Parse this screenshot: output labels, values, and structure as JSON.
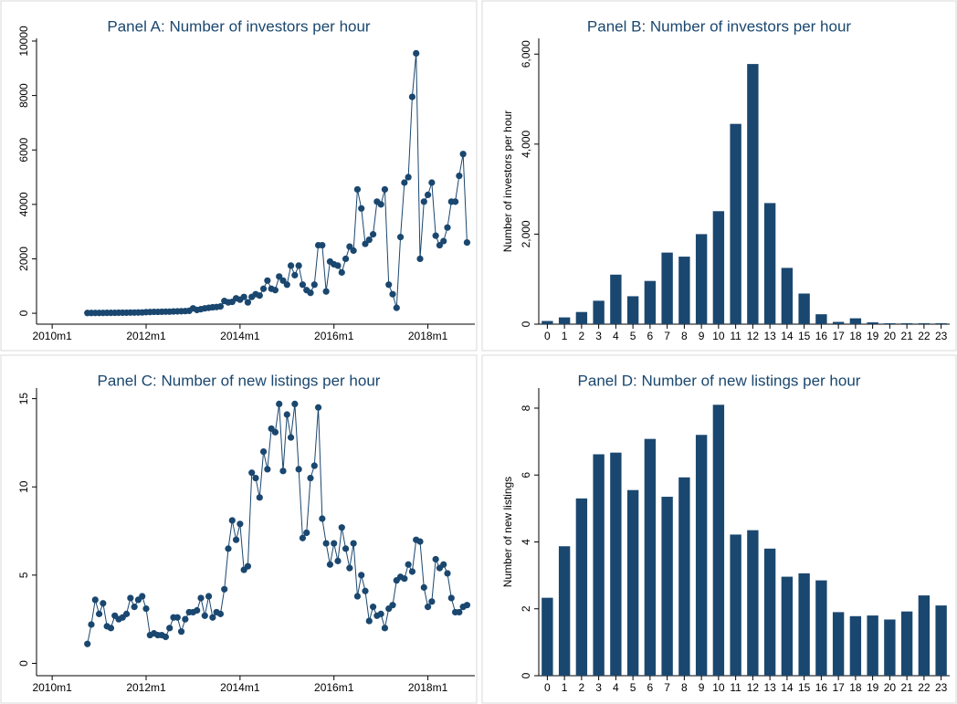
{
  "chart_data": [
    {
      "type": "line",
      "title": "Panel A: Number of investors per hour",
      "color": "#1a476f",
      "x": [
        "2010m10",
        "2010m11",
        "2010m12",
        "2011m1",
        "2011m2",
        "2011m3",
        "2011m4",
        "2011m5",
        "2011m6",
        "2011m7",
        "2011m8",
        "2011m9",
        "2011m10",
        "2011m11",
        "2011m12",
        "2012m1",
        "2012m2",
        "2012m3",
        "2012m4",
        "2012m5",
        "2012m6",
        "2012m7",
        "2012m8",
        "2012m9",
        "2012m10",
        "2012m11",
        "2012m12",
        "2013m1",
        "2013m2",
        "2013m3",
        "2013m4",
        "2013m5",
        "2013m6",
        "2013m7",
        "2013m8",
        "2013m9",
        "2013m10",
        "2013m11",
        "2013m12",
        "2014m1",
        "2014m2",
        "2014m3",
        "2014m4",
        "2014m5",
        "2014m6",
        "2014m7",
        "2014m8",
        "2014m9",
        "2014m10",
        "2014m11",
        "2014m12",
        "2015m1",
        "2015m2",
        "2015m3",
        "2015m4",
        "2015m5",
        "2015m6",
        "2015m7",
        "2015m8",
        "2015m9",
        "2015m10",
        "2015m11",
        "2015m12",
        "2016m1",
        "2016m2",
        "2016m3",
        "2016m4",
        "2016m5",
        "2016m6",
        "2016m7",
        "2016m8",
        "2016m9",
        "2016m10",
        "2016m11",
        "2016m12",
        "2017m1",
        "2017m2",
        "2017m3",
        "2017m4",
        "2017m5",
        "2017m6",
        "2017m7",
        "2017m8",
        "2017m9",
        "2017m10",
        "2017m11",
        "2017m12",
        "2018m1",
        "2018m2",
        "2018m3",
        "2018m4",
        "2018m5",
        "2018m6",
        "2018m7",
        "2018m8",
        "2018m9",
        "2018m10",
        "2018m11"
      ],
      "values": [
        10,
        10,
        11,
        12,
        13,
        15,
        15,
        18,
        20,
        20,
        22,
        25,
        25,
        28,
        30,
        40,
        45,
        50,
        50,
        55,
        60,
        60,
        65,
        70,
        75,
        80,
        90,
        180,
        120,
        150,
        180,
        200,
        220,
        230,
        250,
        450,
        400,
        420,
        550,
        500,
        600,
        400,
        600,
        700,
        650,
        900,
        1200,
        900,
        850,
        1350,
        1200,
        1050,
        1750,
        1400,
        1750,
        1050,
        850,
        750,
        1050,
        2500,
        2500,
        800,
        1900,
        1800,
        1750,
        1500,
        2000,
        2450,
        2300,
        4550,
        3850,
        2550,
        2700,
        2900,
        4100,
        4000,
        4550,
        1050,
        700,
        200,
        2800,
        4800,
        5000,
        7950,
        9550,
        2000,
        4100,
        4350,
        4800,
        2850,
        2500,
        2650,
        3150,
        4100,
        4100,
        5050,
        5850,
        2600
      ],
      "xlim": [
        "2009m9",
        "2019m1"
      ],
      "xticks": [
        "2010m1",
        "2012m1",
        "2014m1",
        "2016m1",
        "2018m1"
      ],
      "ylim": [
        -400,
        10100
      ],
      "yticks": [
        0,
        2000,
        4000,
        6000,
        8000,
        10000
      ]
    },
    {
      "type": "bar",
      "title": "Panel B: Number of investors per hour",
      "color": "#1a476f",
      "ylabel": "Number of investors per hour",
      "categories": [
        "0",
        "1",
        "2",
        "3",
        "4",
        "5",
        "6",
        "7",
        "8",
        "9",
        "10",
        "11",
        "12",
        "13",
        "14",
        "15",
        "16",
        "17",
        "18",
        "19",
        "20",
        "21",
        "22",
        "23"
      ],
      "values": [
        70,
        150,
        270,
        520,
        1100,
        620,
        960,
        1590,
        1500,
        2000,
        2510,
        4450,
        5780,
        2690,
        1250,
        680,
        220,
        50,
        130,
        40,
        20,
        20,
        20,
        20
      ],
      "ylim": [
        0,
        6350
      ],
      "yticks": [
        0,
        {
          "value": 2000,
          "label": "2,000"
        },
        {
          "value": 4000,
          "label": "4,000"
        },
        {
          "value": 6000,
          "label": "6,000"
        }
      ]
    },
    {
      "type": "line",
      "title": "Panel C: Number of new listings per hour",
      "color": "#1a476f",
      "x": [
        "2010m10",
        "2010m11",
        "2010m12",
        "2011m1",
        "2011m2",
        "2011m3",
        "2011m4",
        "2011m5",
        "2011m6",
        "2011m7",
        "2011m8",
        "2011m9",
        "2011m10",
        "2011m11",
        "2011m12",
        "2012m1",
        "2012m2",
        "2012m3",
        "2012m4",
        "2012m5",
        "2012m6",
        "2012m7",
        "2012m8",
        "2012m9",
        "2012m10",
        "2012m11",
        "2012m12",
        "2013m1",
        "2013m2",
        "2013m3",
        "2013m4",
        "2013m5",
        "2013m6",
        "2013m7",
        "2013m8",
        "2013m9",
        "2013m10",
        "2013m11",
        "2013m12",
        "2014m1",
        "2014m2",
        "2014m3",
        "2014m4",
        "2014m5",
        "2014m6",
        "2014m7",
        "2014m8",
        "2014m9",
        "2014m10",
        "2014m11",
        "2014m12",
        "2015m1",
        "2015m2",
        "2015m3",
        "2015m4",
        "2015m5",
        "2015m6",
        "2015m7",
        "2015m8",
        "2015m9",
        "2015m10",
        "2015m11",
        "2015m12",
        "2016m1",
        "2016m2",
        "2016m3",
        "2016m4",
        "2016m5",
        "2016m6",
        "2016m7",
        "2016m8",
        "2016m9",
        "2016m10",
        "2016m11",
        "2016m12",
        "2017m1",
        "2017m2",
        "2017m3",
        "2017m4",
        "2017m5",
        "2017m6",
        "2017m7",
        "2017m8",
        "2017m9",
        "2017m10",
        "2017m11",
        "2017m12",
        "2018m1",
        "2018m2",
        "2018m3",
        "2018m4",
        "2018m5",
        "2018m6",
        "2018m7",
        "2018m8",
        "2018m9",
        "2018m10",
        "2018m11"
      ],
      "values": [
        1.1,
        2.2,
        3.6,
        2.8,
        3.4,
        2.1,
        2.0,
        2.7,
        2.5,
        2.6,
        2.8,
        3.7,
        3.2,
        3.6,
        3.8,
        3.1,
        1.6,
        1.7,
        1.6,
        1.6,
        1.5,
        2.0,
        2.6,
        2.6,
        1.8,
        2.5,
        2.9,
        2.9,
        3.0,
        3.7,
        2.7,
        3.8,
        2.6,
        2.9,
        2.8,
        4.2,
        6.5,
        8.1,
        7.0,
        7.9,
        5.3,
        5.5,
        10.8,
        10.5,
        9.4,
        12.0,
        11.0,
        13.3,
        13.1,
        14.7,
        10.9,
        14.1,
        12.8,
        14.7,
        11.0,
        7.1,
        7.4,
        10.5,
        11.2,
        14.5,
        8.2,
        6.8,
        5.6,
        6.8,
        5.8,
        7.7,
        6.5,
        5.4,
        6.8,
        3.8,
        5.0,
        4.1,
        2.4,
        3.2,
        2.7,
        2.8,
        2.0,
        3.1,
        3.3,
        4.7,
        4.9,
        4.8,
        5.6,
        5.2,
        7.0,
        6.9,
        4.3,
        3.2,
        3.5,
        5.9,
        5.4,
        5.6,
        5.1,
        3.7,
        2.9,
        2.9,
        3.2,
        3.3
      ],
      "xlim": [
        "2009m9",
        "2019m1"
      ],
      "xticks": [
        "2010m1",
        "2012m1",
        "2014m1",
        "2016m1",
        "2018m1"
      ],
      "ylim": [
        -0.7,
        15.6
      ],
      "yticks": [
        0,
        5,
        10,
        15
      ]
    },
    {
      "type": "bar",
      "title": "Panel D: Number of new listings per hour",
      "color": "#1a476f",
      "ylabel": "Number of new listings",
      "categories": [
        "0",
        "1",
        "2",
        "3",
        "4",
        "5",
        "6",
        "7",
        "8",
        "9",
        "10",
        "11",
        "12",
        "13",
        "14",
        "15",
        "16",
        "17",
        "18",
        "19",
        "20",
        "21",
        "22",
        "23"
      ],
      "values": [
        2.33,
        3.87,
        5.3,
        6.62,
        6.67,
        5.55,
        7.08,
        5.35,
        5.93,
        7.2,
        8.1,
        4.22,
        4.35,
        3.8,
        2.96,
        3.06,
        2.85,
        1.9,
        1.78,
        1.8,
        1.68,
        1.92,
        2.4,
        2.1
      ],
      "ylim": [
        0,
        8.6
      ],
      "yticks": [
        0,
        2,
        4,
        6,
        8
      ]
    }
  ]
}
